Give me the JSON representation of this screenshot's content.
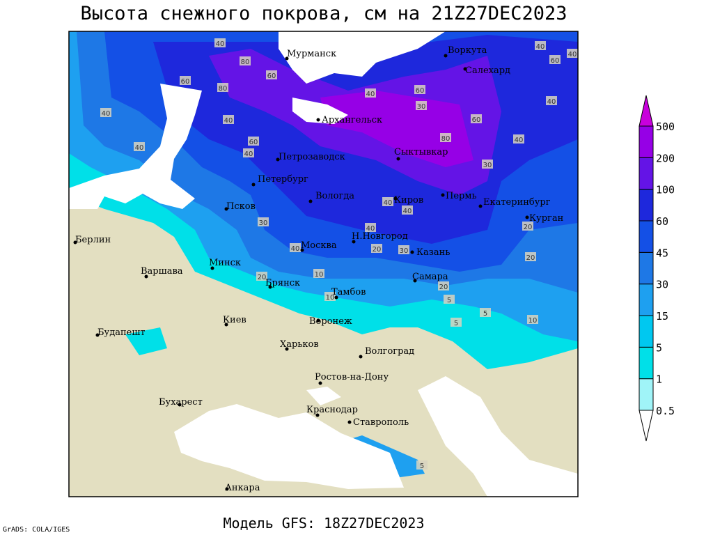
{
  "header": {
    "title": "Высота снежного покрова, см на 21Z27DEC2023"
  },
  "footer": {
    "model": "Модель GFS: 18Z27DEC2023",
    "credit": "GrADS: COLA/IGES"
  },
  "legend": {
    "levels": [
      0.5,
      1,
      5,
      15,
      30,
      45,
      60,
      100,
      200,
      500
    ],
    "colors": [
      "#ffffff",
      "#a0f4f8",
      "#00e0e8",
      "#00c8f0",
      "#1ea0f0",
      "#1e78e6",
      "#1450e6",
      "#1e28dc",
      "#6414e6",
      "#9600e6",
      "#c800dc"
    ]
  },
  "cities": [
    "Мурманск",
    "Воркута",
    "Салехард",
    "Архангельск",
    "Петрозаводск",
    "Сыктывкар",
    "Петербург",
    "Вологда",
    "Псков",
    "Киров",
    "Пермь",
    "Екатеринбург",
    "Курган",
    "Н.Новгород",
    "Берлин",
    "Москва",
    "Казань",
    "Минск",
    "Варшава",
    "Брянск",
    "Самара",
    "Тамбов",
    "Киев",
    "Воронеж",
    "Будапешт",
    "Харьков",
    "Волгоград",
    "Ростов-на-Дону",
    "Бухарест",
    "Краснодар",
    "Ставрополь",
    "Анкара"
  ],
  "contour_labels": [
    40,
    80,
    60,
    60,
    80,
    40,
    40,
    40,
    40,
    60,
    40,
    60,
    30,
    60,
    80,
    40,
    40,
    40,
    60,
    40,
    30,
    40,
    40,
    30,
    40,
    20,
    40,
    20,
    30,
    20,
    20,
    20,
    10,
    10,
    5,
    5,
    5,
    10,
    5
  ]
}
